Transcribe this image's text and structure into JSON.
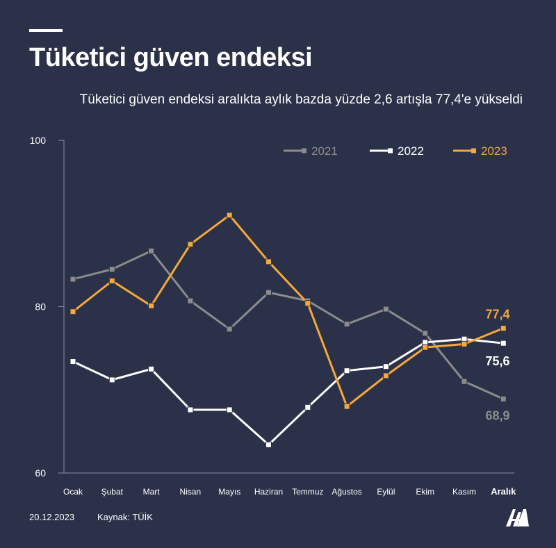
{
  "header": {
    "title": "Tüketici güven endeksi",
    "subtitle": "Tüketici güven endeksi aralıkta aylık bazda yüzde 2,6 artışla 77,4'e yükseldi"
  },
  "footer": {
    "date": "20.12.2023",
    "source": "Kaynak: TÜİK",
    "logo": "AA"
  },
  "colors": {
    "background": "#2b3149",
    "axis": "#8a8fa3",
    "series_2021": "#8c8c8c",
    "series_2022": "#ffffff",
    "series_2023": "#f5a93a"
  },
  "chart_data": {
    "type": "line",
    "title": "",
    "xlabel": "",
    "ylabel": "",
    "categories": [
      "Ocak",
      "Şubat",
      "Mart",
      "Nisan",
      "Mayıs",
      "Haziran",
      "Temmuz",
      "Ağustos",
      "Eylül",
      "Ekim",
      "Kasım",
      "Aralık"
    ],
    "highlight_category": "Aralık",
    "ylim": [
      60,
      100
    ],
    "yticks": [
      60,
      80,
      100
    ],
    "grid": false,
    "legend_position": "top-right",
    "series": [
      {
        "name": "2021",
        "color": "#8c8c8c",
        "values": [
          83.3,
          84.5,
          86.7,
          80.7,
          77.3,
          81.7,
          80.7,
          77.9,
          79.7,
          76.8,
          71.0,
          68.9
        ],
        "end_label": "68,9"
      },
      {
        "name": "2022",
        "color": "#ffffff",
        "values": [
          73.4,
          71.2,
          72.5,
          67.6,
          67.6,
          63.4,
          67.9,
          72.3,
          72.8,
          75.7,
          76.1,
          75.6
        ],
        "end_label": "75,6"
      },
      {
        "name": "2023",
        "color": "#f5a93a",
        "values": [
          79.4,
          83.1,
          80.1,
          87.5,
          91.0,
          85.4,
          80.4,
          68.0,
          71.7,
          75.1,
          75.5,
          77.4
        ],
        "end_label": "77,4"
      }
    ]
  }
}
